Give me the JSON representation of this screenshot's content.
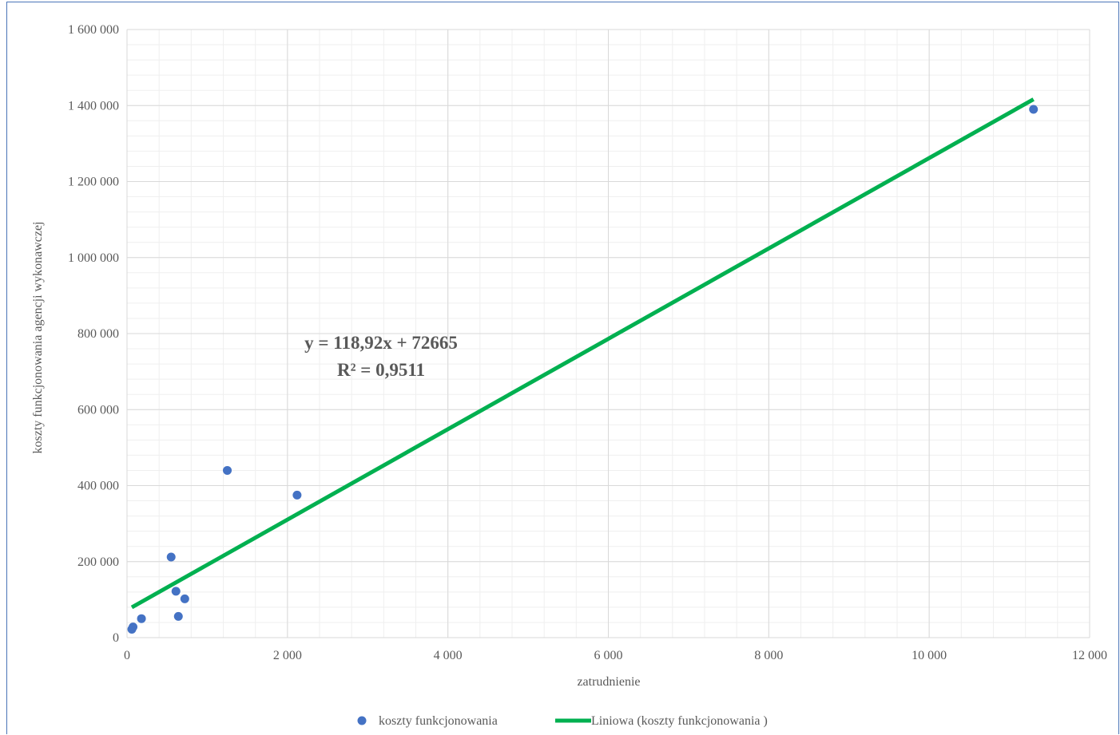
{
  "chart_data": {
    "type": "scatter",
    "title": "",
    "xlabel": "zatrudnienie",
    "ylabel": "koszty funkcjonowania agencji wykonawczej",
    "xlim": [
      0,
      12000
    ],
    "ylim": [
      0,
      1600000
    ],
    "grid": true,
    "x_ticks": [
      0,
      2000,
      4000,
      6000,
      8000,
      10000,
      12000
    ],
    "x_tick_labels": [
      "0",
      "2 000",
      "4 000",
      "6 000",
      "8 000",
      "10 000",
      "12 000"
    ],
    "y_ticks": [
      0,
      200000,
      400000,
      600000,
      800000,
      1000000,
      1200000,
      1400000,
      1600000
    ],
    "y_tick_labels": [
      "0",
      "200 000",
      "400 000",
      "600 000",
      "800 000",
      "1 000 000",
      "1 200 000",
      "1 400 000",
      "1 600 000"
    ],
    "series": [
      {
        "name": "koszty funkcjonowania",
        "color": "#4472c4",
        "points": [
          {
            "x": 60,
            "y": 22000
          },
          {
            "x": 75,
            "y": 28000
          },
          {
            "x": 180,
            "y": 50000
          },
          {
            "x": 550,
            "y": 212000
          },
          {
            "x": 610,
            "y": 122000
          },
          {
            "x": 640,
            "y": 56000
          },
          {
            "x": 720,
            "y": 102000
          },
          {
            "x": 1250,
            "y": 440000
          },
          {
            "x": 2120,
            "y": 375000
          },
          {
            "x": 11300,
            "y": 1390000
          }
        ]
      }
    ],
    "trendline": {
      "name": "Liniowa (koszty funkcjonowania )",
      "color": "#00b050",
      "slope": 118.92,
      "intercept": 72665,
      "x_range": [
        60,
        11300
      ],
      "equation": "y = 118,92x + 72665",
      "r2": "R² = 0,9511"
    },
    "legend_position": "bottom",
    "gridline_color": "#d9d9d9"
  }
}
